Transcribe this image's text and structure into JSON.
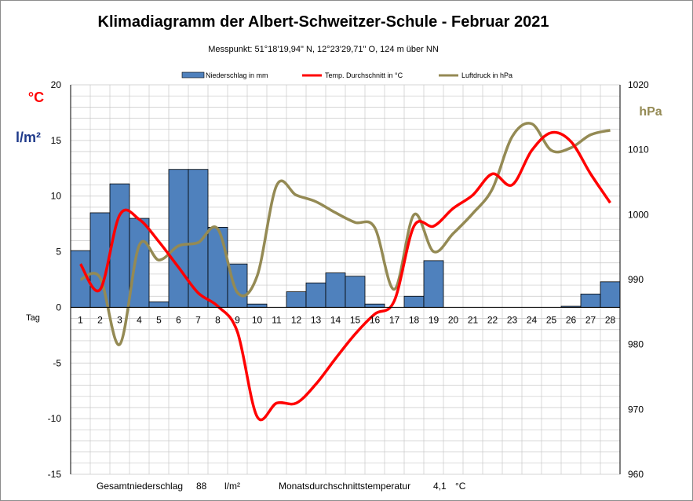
{
  "chart_data": {
    "type": "bar",
    "title": "Klimadiagramm der Albert-Schweitzer-Schule    -   Februar 2021",
    "subtitle": "Messpunkt:  51°18'19,94\" N,  12°23'29,71\" O,  124 m über NN",
    "xlabel": "Tag",
    "y_left_label_temp": "°C",
    "y_left_label_precip": "l/m²",
    "y_right_label": "hPa",
    "x": [
      1,
      2,
      3,
      4,
      5,
      6,
      7,
      8,
      9,
      10,
      11,
      12,
      13,
      14,
      15,
      16,
      17,
      18,
      19,
      20,
      21,
      22,
      23,
      24,
      25,
      26,
      27,
      28
    ],
    "x_tick_labels": [
      "1",
      "2",
      "3",
      "4",
      "5",
      "6",
      "7",
      "8",
      "9",
      "10",
      "11",
      "12",
      "13",
      "14",
      "15",
      "16",
      "17",
      "18",
      "19",
      "20",
      "21",
      "22",
      "23",
      "24",
      "25",
      "26",
      "27",
      "28"
    ],
    "ylim_left": [
      -15,
      20
    ],
    "y_left_ticks": [
      20,
      15,
      10,
      5,
      0,
      -5,
      -10,
      -15
    ],
    "y_left_tick_labels": [
      "20",
      "15",
      "10",
      "5",
      "0",
      "-5",
      "-10",
      "-15"
    ],
    "ylim_right": [
      960,
      1020
    ],
    "y_right_ticks": [
      1020,
      1010,
      1000,
      990,
      980,
      970,
      960
    ],
    "y_right_tick_labels": [
      "1020",
      "1010",
      "1000",
      "990",
      "980",
      "970",
      "960"
    ],
    "grid": true,
    "legend_position": "top",
    "series": [
      {
        "name": "Niederschlag in mm",
        "type": "bar",
        "axis": "left",
        "color": "#4f81bd",
        "values": [
          5.1,
          8.5,
          11.1,
          8.0,
          0.5,
          12.4,
          12.4,
          7.2,
          3.9,
          0.3,
          0,
          1.4,
          2.2,
          3.1,
          2.8,
          0.3,
          0,
          1.0,
          4.2,
          0,
          0,
          0,
          0,
          0,
          0,
          0.1,
          1.2,
          2.3
        ]
      },
      {
        "name": "Temp. Durchschnitt in °C",
        "type": "line",
        "axis": "left",
        "color": "#ff0000",
        "values": [
          3.9,
          1.6,
          8.3,
          7.9,
          5.9,
          3.6,
          1.3,
          0.1,
          -2.2,
          -9.8,
          -8.6,
          -8.6,
          -6.9,
          -4.6,
          -2.4,
          -0.6,
          0.6,
          7.3,
          7.3,
          8.9,
          10.1,
          12.0,
          11.0,
          14.1,
          15.7,
          14.9,
          12.0,
          9.4
        ]
      },
      {
        "name": "Luftdruck in hPa",
        "type": "line",
        "axis": "right",
        "color": "#948a54",
        "values": [
          990.0,
          990.3,
          980.0,
          995.3,
          993.0,
          995.2,
          995.7,
          997.8,
          988.0,
          990.5,
          1004.5,
          1003.0,
          1002.0,
          1000.3,
          998.8,
          998.0,
          988.5,
          1000.0,
          994.3,
          997.1,
          1000.2,
          1004.0,
          1012.0,
          1014.0,
          1009.9,
          1010.3,
          1012.3,
          1013.0
        ]
      }
    ],
    "annotations": {
      "total_precip_label": "Gesamtniederschlag",
      "total_precip_value": "88",
      "total_precip_unit": "l/m²",
      "mean_temp_label": "Monatsdurchschnittstemperatur",
      "mean_temp_value": "4,1",
      "mean_temp_unit": "°C"
    }
  }
}
